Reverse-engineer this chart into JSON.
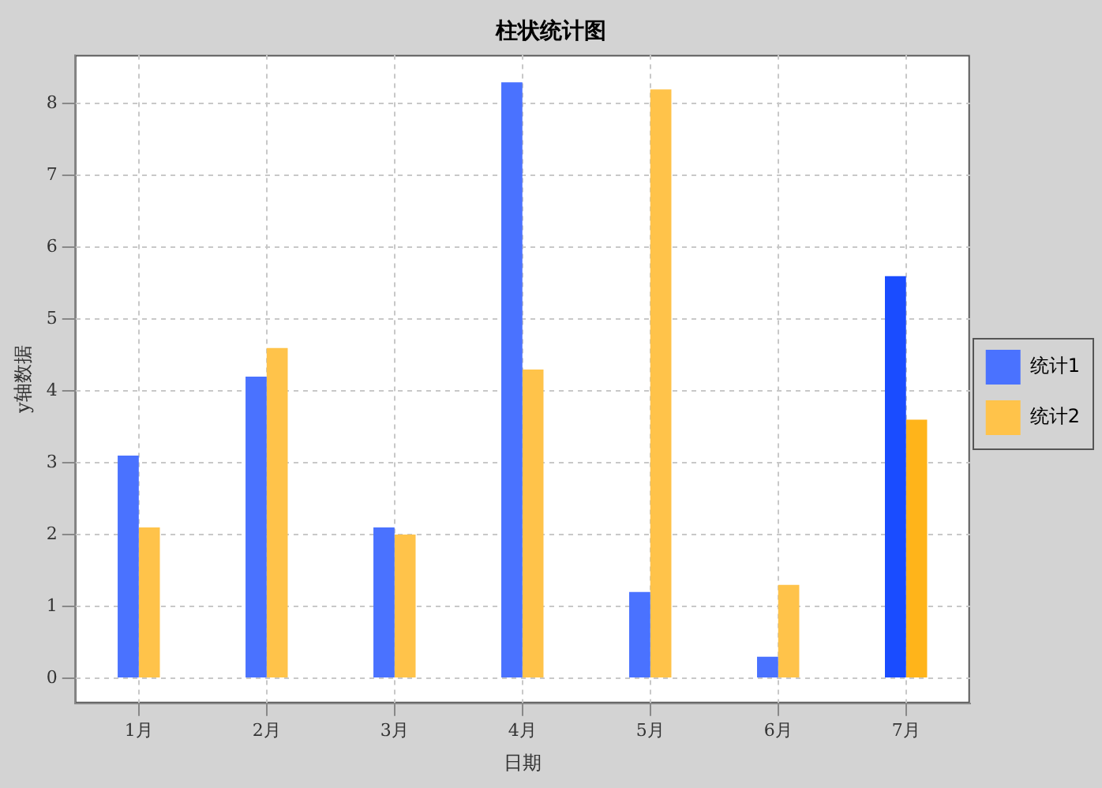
{
  "chart_data": {
    "type": "bar",
    "title": "柱状统计图",
    "xlabel": "日期",
    "ylabel": "y轴数据",
    "categories": [
      "1月",
      "2月",
      "3月",
      "4月",
      "5月",
      "6月",
      "7月"
    ],
    "series": [
      {
        "name": "统计1",
        "color": "#4a72ff",
        "colors": [
          "#4a72ff",
          "#4a72ff",
          "#4a72ff",
          "#4a72ff",
          "#4a72ff",
          "#4a72ff",
          "#1a4cff"
        ],
        "values": [
          3.1,
          4.2,
          2.1,
          8.3,
          1.2,
          0.3,
          5.6
        ]
      },
      {
        "name": "统计2",
        "color": "#ffc34a",
        "colors": [
          "#ffc34a",
          "#ffc34a",
          "#ffc34a",
          "#ffc34a",
          "#ffc34a",
          "#ffc34a",
          "#ffb41a"
        ],
        "values": [
          2.1,
          4.6,
          2.0,
          4.3,
          8.2,
          1.3,
          3.6
        ]
      }
    ],
    "ylim": [
      -0.35,
      8.68
    ],
    "yticks": [
      0,
      1,
      2,
      3,
      4,
      5,
      6,
      7,
      8
    ],
    "grid": true,
    "legend": "right"
  }
}
